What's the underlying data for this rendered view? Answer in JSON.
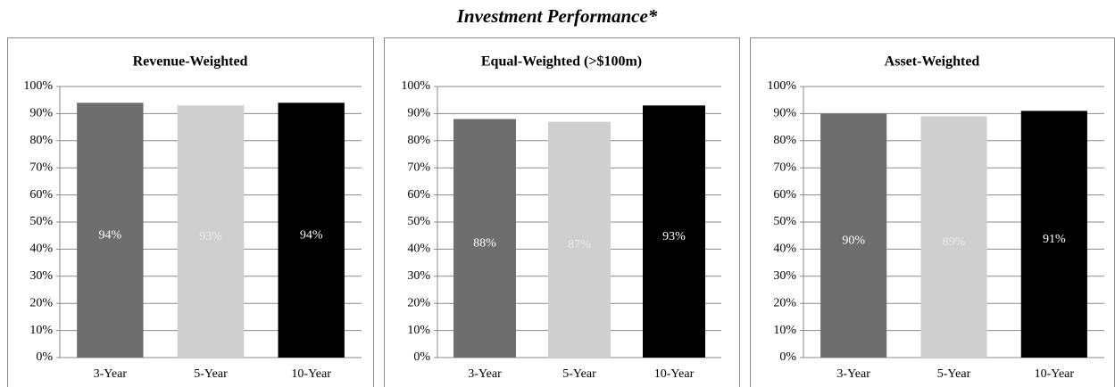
{
  "title": "Investment Performance*",
  "chart_data": [
    {
      "type": "bar",
      "title": "Revenue-Weighted",
      "categories": [
        "3-Year",
        "5-Year",
        "10-Year"
      ],
      "values": [
        94,
        93,
        94
      ],
      "value_labels": [
        "94%",
        "93%",
        "94%"
      ],
      "colors": [
        "#6e6e6e",
        "#cfcfcf",
        "#000000"
      ],
      "label_colors": [
        "#ffffff",
        "#ececec",
        "#ffffff"
      ],
      "ylim": [
        0,
        100
      ],
      "yticks": [
        {
          "value": 0,
          "label": "0%"
        },
        {
          "value": 10,
          "label": "10%"
        },
        {
          "value": 20,
          "label": "20%"
        },
        {
          "value": 30,
          "label": "30%"
        },
        {
          "value": 40,
          "label": "40%"
        },
        {
          "value": 50,
          "label": "50%"
        },
        {
          "value": 60,
          "label": "60%"
        },
        {
          "value": 70,
          "label": "70%"
        },
        {
          "value": 80,
          "label": "80%"
        },
        {
          "value": 90,
          "label": "90%"
        },
        {
          "value": 100,
          "label": "100%"
        }
      ],
      "grid": true
    },
    {
      "type": "bar",
      "title": "Equal-Weighted (>$100m)",
      "categories": [
        "3-Year",
        "5-Year",
        "10-Year"
      ],
      "values": [
        88,
        87,
        93
      ],
      "value_labels": [
        "88%",
        "87%",
        "93%"
      ],
      "colors": [
        "#6e6e6e",
        "#cfcfcf",
        "#000000"
      ],
      "label_colors": [
        "#ffffff",
        "#ececec",
        "#ffffff"
      ],
      "ylim": [
        0,
        100
      ],
      "yticks": [
        {
          "value": 0,
          "label": "0%"
        },
        {
          "value": 10,
          "label": "10%"
        },
        {
          "value": 20,
          "label": "20%"
        },
        {
          "value": 30,
          "label": "30%"
        },
        {
          "value": 40,
          "label": "40%"
        },
        {
          "value": 50,
          "label": "50%"
        },
        {
          "value": 60,
          "label": "60%"
        },
        {
          "value": 70,
          "label": "70%"
        },
        {
          "value": 80,
          "label": "80%"
        },
        {
          "value": 90,
          "label": "90%"
        },
        {
          "value": 100,
          "label": "100%"
        }
      ],
      "grid": true
    },
    {
      "type": "bar",
      "title": "Asset-Weighted",
      "categories": [
        "3-Year",
        "5-Year",
        "10-Year"
      ],
      "values": [
        90,
        89,
        91
      ],
      "value_labels": [
        "90%",
        "89%",
        "91%"
      ],
      "colors": [
        "#6e6e6e",
        "#cfcfcf",
        "#000000"
      ],
      "label_colors": [
        "#ffffff",
        "#ececec",
        "#ffffff"
      ],
      "ylim": [
        0,
        100
      ],
      "yticks": [
        {
          "value": 0,
          "label": "0%"
        },
        {
          "value": 10,
          "label": "10%"
        },
        {
          "value": 20,
          "label": "20%"
        },
        {
          "value": 30,
          "label": "30%"
        },
        {
          "value": 40,
          "label": "40%"
        },
        {
          "value": 50,
          "label": "50%"
        },
        {
          "value": 60,
          "label": "60%"
        },
        {
          "value": 70,
          "label": "70%"
        },
        {
          "value": 80,
          "label": "80%"
        },
        {
          "value": 90,
          "label": "90%"
        },
        {
          "value": 100,
          "label": "100%"
        }
      ],
      "grid": true
    }
  ]
}
